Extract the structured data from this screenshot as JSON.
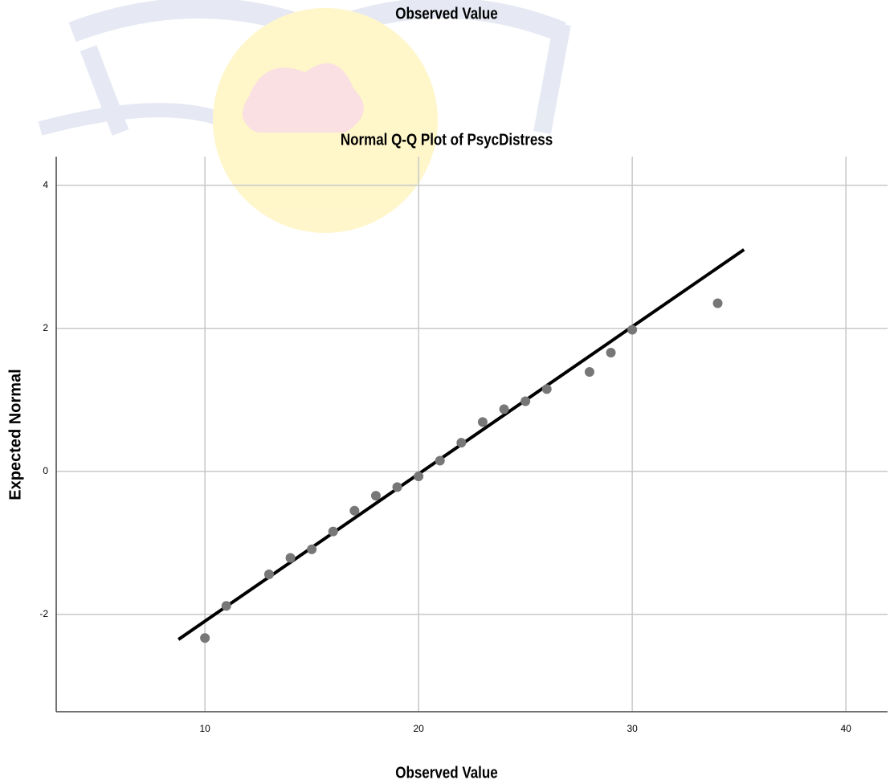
{
  "header": {
    "caption": "Observed Value"
  },
  "chart_data": {
    "type": "scatter",
    "title": "Normal Q-Q Plot of PsycDistress",
    "x_label": "Observed Value",
    "y_label": "Expected Normal",
    "x": [
      10,
      11,
      13,
      14,
      15,
      16,
      17,
      18,
      19,
      20,
      21,
      22,
      23,
      24,
      25,
      26,
      28,
      29,
      30,
      34
    ],
    "values": [
      -2.33,
      -1.88,
      -1.44,
      -1.21,
      -1.09,
      -0.84,
      -0.55,
      -0.34,
      -0.22,
      -0.07,
      0.15,
      0.4,
      0.69,
      0.87,
      0.98,
      1.15,
      1.39,
      1.66,
      1.98,
      2.35
    ],
    "color": "#777777",
    "reference_line": {
      "x": [
        8.76,
        35.23
      ],
      "y": [
        -2.35,
        3.1
      ],
      "color": "#000000"
    },
    "xlim": [
      3.04,
      41.95
    ],
    "ylim": [
      -3.36,
      4.4
    ],
    "xticks": [
      10,
      20,
      30,
      40
    ],
    "yticks": [
      -2,
      0,
      2,
      4
    ],
    "grid": true
  }
}
